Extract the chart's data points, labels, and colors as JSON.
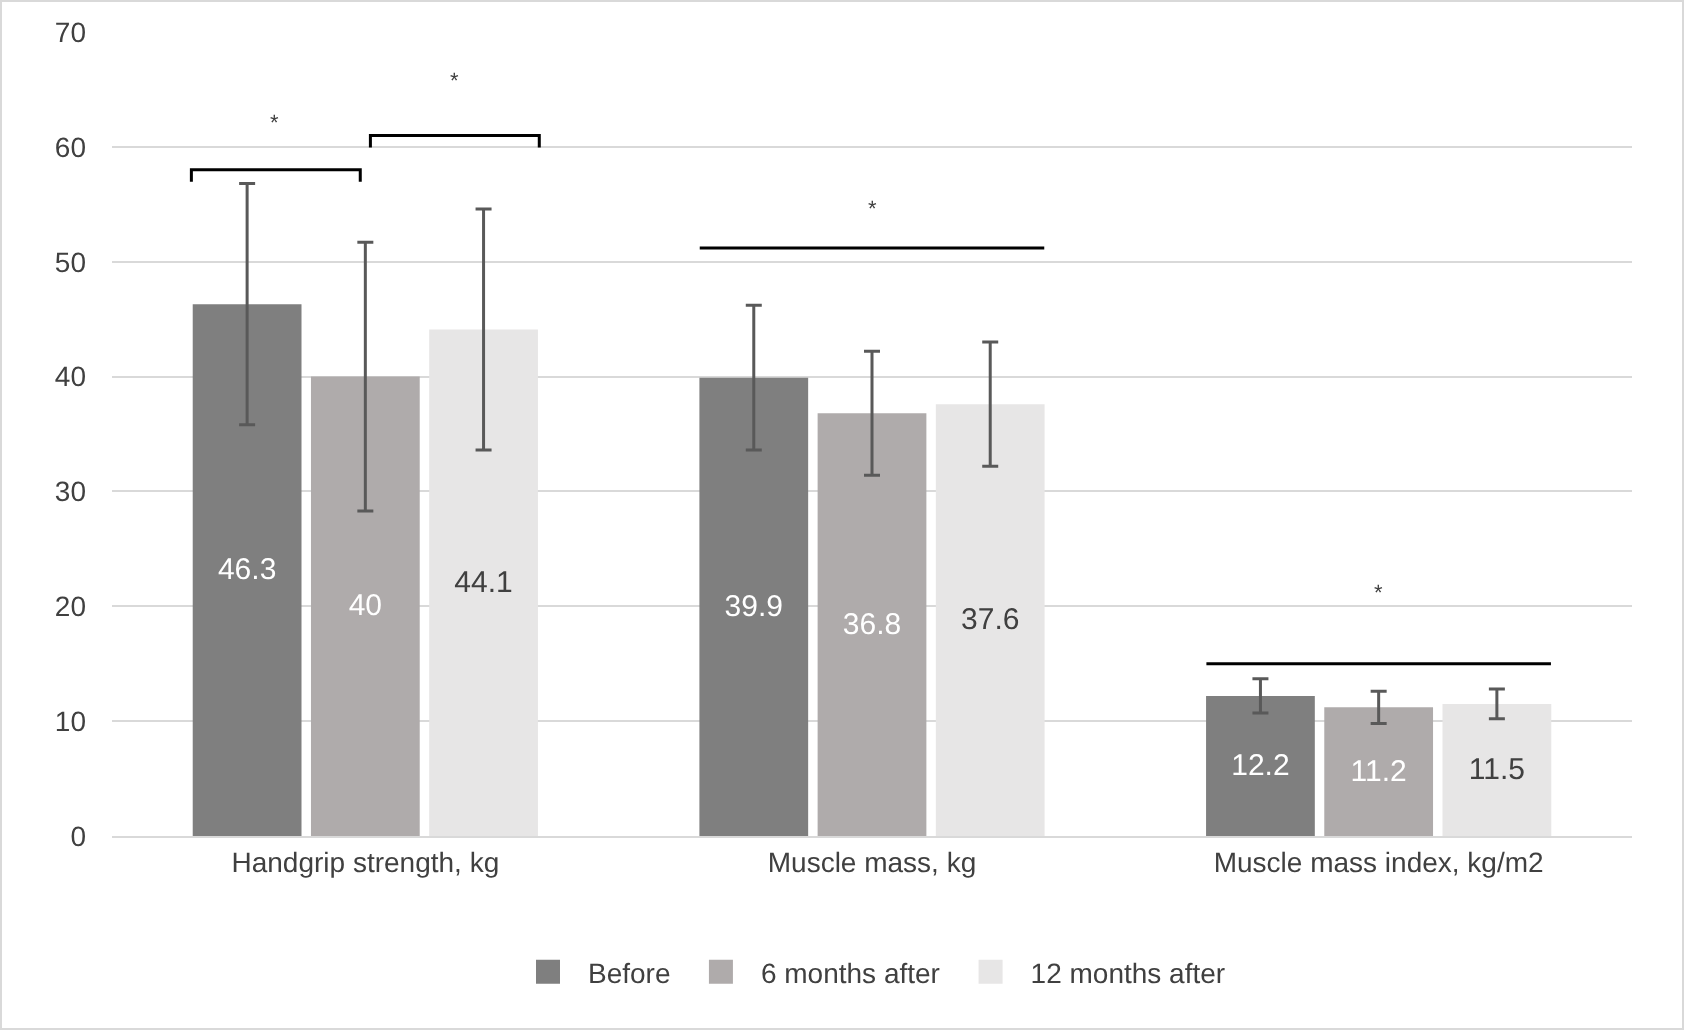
{
  "chart_data": {
    "type": "bar",
    "categories": [
      "Handgrip strength, kg",
      "Muscle mass, kg",
      "Muscle mass index, kg/m2"
    ],
    "series": [
      {
        "name": "Before",
        "color": "#7f7f7f",
        "values": [
          46.3,
          39.9,
          12.2
        ],
        "errors": [
          10.5,
          6.3,
          1.5
        ]
      },
      {
        "name": "6 months after",
        "color": "#afabab",
        "values": [
          40,
          36.8,
          11.2
        ],
        "errors": [
          11.7,
          5.4,
          1.4
        ]
      },
      {
        "name": "12 months after",
        "color": "#e7e6e6",
        "values": [
          44.1,
          37.6,
          11.5
        ],
        "errors": [
          10.5,
          5.4,
          1.3
        ]
      }
    ],
    "ylim": [
      0,
      70
    ],
    "yticks": [
      0,
      10,
      20,
      30,
      40,
      50,
      60,
      70
    ],
    "grid": "y",
    "legend": "bottom",
    "data_labels": true,
    "annotations": [
      "*",
      "*",
      "*",
      "*"
    ]
  }
}
